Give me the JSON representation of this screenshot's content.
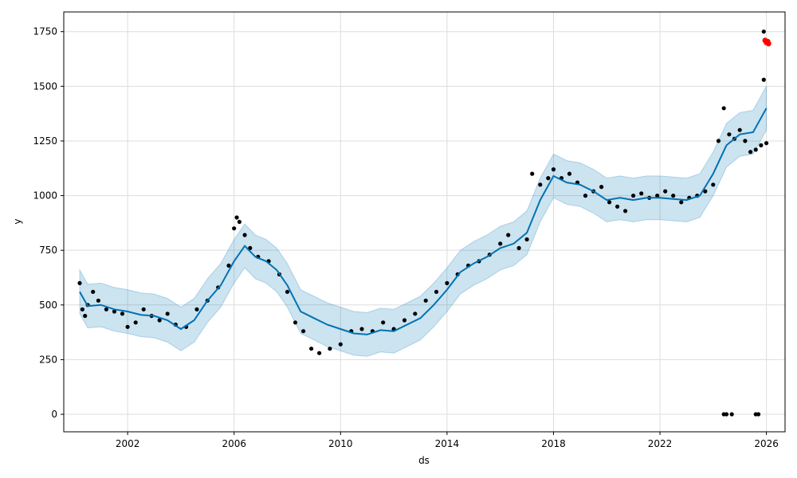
{
  "chart_data": {
    "type": "line",
    "title": "",
    "xlabel": "ds",
    "ylabel": "y",
    "xlim": [
      1999.6,
      2026.7
    ],
    "ylim": [
      -80,
      1840
    ],
    "x_ticks": [
      2002,
      2006,
      2010,
      2014,
      2018,
      2022,
      2026
    ],
    "y_ticks": [
      0,
      250,
      500,
      750,
      1000,
      1250,
      1500,
      1750
    ],
    "grid": true,
    "colors": {
      "forecast": "#0072B2",
      "interval": "#0072B2",
      "observed": "#000000",
      "highlight": "#ff0000"
    },
    "forecast": {
      "x": [
        2000.2,
        2000.5,
        2001.0,
        2001.5,
        2002.0,
        2002.5,
        2003.0,
        2003.5,
        2004.0,
        2004.5,
        2005.0,
        2005.5,
        2006.0,
        2006.4,
        2006.8,
        2007.2,
        2007.6,
        2008.0,
        2008.5,
        2009.0,
        2009.5,
        2010.0,
        2010.5,
        2011.0,
        2011.5,
        2012.0,
        2012.5,
        2013.0,
        2013.5,
        2014.0,
        2014.5,
        2015.0,
        2015.5,
        2016.0,
        2016.5,
        2017.0,
        2017.5,
        2018.0,
        2018.5,
        2019.0,
        2019.5,
        2020.0,
        2020.5,
        2021.0,
        2021.5,
        2022.0,
        2022.5,
        2023.0,
        2023.5,
        2024.0,
        2024.5,
        2025.0,
        2025.5,
        2026.0
      ],
      "y": [
        560,
        495,
        500,
        480,
        470,
        455,
        450,
        430,
        390,
        430,
        520,
        590,
        700,
        770,
        720,
        700,
        660,
        590,
        470,
        440,
        410,
        390,
        370,
        365,
        385,
        380,
        410,
        440,
        500,
        570,
        650,
        690,
        720,
        760,
        780,
        830,
        980,
        1090,
        1060,
        1050,
        1020,
        980,
        990,
        980,
        990,
        990,
        985,
        980,
        1000,
        1100,
        1230,
        1280,
        1290,
        1400
      ],
      "lower": [
        460,
        395,
        400,
        380,
        370,
        355,
        350,
        330,
        290,
        330,
        420,
        490,
        600,
        670,
        620,
        600,
        560,
        490,
        370,
        340,
        310,
        290,
        270,
        265,
        285,
        280,
        310,
        340,
        400,
        470,
        550,
        590,
        620,
        660,
        680,
        730,
        880,
        990,
        960,
        950,
        920,
        880,
        890,
        880,
        890,
        890,
        885,
        880,
        900,
        1000,
        1130,
        1180,
        1190,
        1300
      ],
      "upper": [
        660,
        595,
        600,
        580,
        570,
        555,
        550,
        530,
        490,
        530,
        620,
        690,
        800,
        870,
        820,
        800,
        760,
        690,
        570,
        540,
        510,
        490,
        470,
        465,
        485,
        480,
        510,
        540,
        600,
        670,
        750,
        790,
        820,
        860,
        880,
        930,
        1080,
        1190,
        1160,
        1150,
        1120,
        1080,
        1090,
        1080,
        1090,
        1090,
        1085,
        1080,
        1100,
        1200,
        1330,
        1380,
        1390,
        1500
      ]
    },
    "observed": {
      "x": [
        2000.2,
        2000.3,
        2000.4,
        2000.5,
        2000.7,
        2000.9,
        2001.2,
        2001.5,
        2001.8,
        2002.0,
        2002.3,
        2002.6,
        2002.9,
        2003.2,
        2003.5,
        2003.8,
        2004.2,
        2004.6,
        2005.0,
        2005.4,
        2005.8,
        2006.0,
        2006.1,
        2006.2,
        2006.4,
        2006.6,
        2006.9,
        2007.3,
        2007.7,
        2008.0,
        2008.3,
        2008.6,
        2008.9,
        2009.2,
        2009.6,
        2010.0,
        2010.4,
        2010.8,
        2011.2,
        2011.6,
        2012.0,
        2012.4,
        2012.8,
        2013.2,
        2013.6,
        2014.0,
        2014.4,
        2014.8,
        2015.2,
        2015.6,
        2016.0,
        2016.3,
        2016.7,
        2017.0,
        2017.2,
        2017.5,
        2017.8,
        2018.0,
        2018.3,
        2018.6,
        2018.9,
        2019.2,
        2019.5,
        2019.8,
        2020.1,
        2020.4,
        2020.7,
        2021.0,
        2021.3,
        2021.6,
        2021.9,
        2022.2,
        2022.5,
        2022.8,
        2023.1,
        2023.4,
        2023.7,
        2024.0,
        2024.2,
        2024.4,
        2024.6,
        2024.8,
        2025.0,
        2025.2,
        2025.4,
        2025.6,
        2025.8,
        2026.0
      ],
      "y": [
        600,
        480,
        450,
        500,
        560,
        520,
        480,
        470,
        460,
        400,
        420,
        480,
        450,
        430,
        460,
        410,
        400,
        480,
        520,
        580,
        680,
        850,
        900,
        880,
        820,
        760,
        720,
        700,
        640,
        560,
        420,
        380,
        300,
        280,
        300,
        320,
        380,
        390,
        380,
        420,
        390,
        430,
        460,
        520,
        560,
        600,
        640,
        680,
        700,
        730,
        780,
        820,
        760,
        800,
        1100,
        1050,
        1080,
        1120,
        1080,
        1100,
        1060,
        1000,
        1020,
        1040,
        970,
        950,
        930,
        1000,
        1010,
        990,
        1000,
        1020,
        1000,
        970,
        990,
        1000,
        1020,
        1050,
        1250,
        1400,
        1280,
        1260,
        1300,
        1250,
        1200,
        1210,
        1230,
        1240
      ],
      "outliers_x": [
        2024.4,
        2024.5,
        2024.7,
        2025.6,
        2025.7,
        2025.9,
        2025.9
      ],
      "outliers_y": [
        0,
        0,
        0,
        0,
        0,
        1530,
        1750
      ]
    },
    "highlight": {
      "x": [
        2025.95,
        2026.0,
        2026.05,
        2026.08
      ],
      "y": [
        1710,
        1700,
        1705,
        1695
      ]
    }
  }
}
